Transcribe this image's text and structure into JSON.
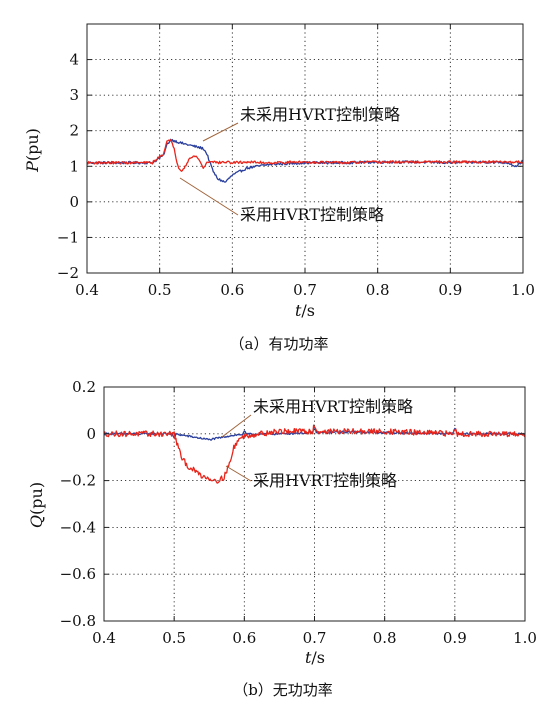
{
  "chart_data": [
    {
      "type": "line",
      "caption": "（a）有功功率",
      "xlabel": "t/s",
      "ylabel": "P(pu)",
      "xlim": [
        0.4,
        1.0
      ],
      "ylim": [
        -2,
        5
      ],
      "xticks": [
        0.4,
        0.5,
        0.6,
        0.7,
        0.8,
        0.9,
        1.0
      ],
      "xtick_labels": [
        "0.4",
        "0.5",
        "0.6",
        "0.7",
        "0.8",
        "0.9",
        "1.0"
      ],
      "yticks": [
        -2,
        -1,
        0,
        1,
        2,
        3,
        4
      ],
      "ytick_labels": [
        "−2",
        "−1",
        "0",
        "1",
        "2",
        "3",
        "4"
      ],
      "grid": "dotted",
      "annotations": [
        "未采用HVRT控制策略",
        "采用HVRT控制策略"
      ],
      "series": [
        {
          "name": "未采用HVRT控制策略",
          "color": "#2a3f9d",
          "noise": 0.035,
          "x": [
            0.4,
            0.49,
            0.505,
            0.51,
            0.515,
            0.52,
            0.53,
            0.54,
            0.55,
            0.56,
            0.565,
            0.57,
            0.575,
            0.58,
            0.59,
            0.6,
            0.62,
            0.65,
            0.7,
            0.75,
            0.8,
            0.85,
            0.9,
            0.95,
            0.98,
            0.99,
            1.0
          ],
          "y": [
            1.1,
            1.1,
            1.3,
            1.6,
            1.75,
            1.72,
            1.65,
            1.6,
            1.55,
            1.5,
            1.35,
            1.05,
            0.8,
            0.65,
            0.55,
            0.75,
            0.95,
            1.05,
            1.1,
            1.1,
            1.12,
            1.12,
            1.1,
            1.12,
            1.1,
            1.0,
            1.15
          ]
        },
        {
          "name": "采用HVRT控制策略",
          "color": "#e8251b",
          "noise": 0.035,
          "x": [
            0.4,
            0.49,
            0.505,
            0.51,
            0.515,
            0.52,
            0.525,
            0.53,
            0.535,
            0.54,
            0.55,
            0.555,
            0.56,
            0.565,
            0.57,
            0.58,
            0.59,
            0.6,
            0.62,
            0.65,
            0.7,
            0.75,
            0.8,
            0.85,
            0.9,
            0.95,
            1.0
          ],
          "y": [
            1.1,
            1.1,
            1.35,
            1.7,
            1.72,
            1.5,
            1.0,
            0.88,
            1.0,
            1.2,
            1.3,
            1.15,
            0.95,
            1.1,
            1.15,
            1.1,
            1.12,
            1.1,
            1.12,
            1.1,
            1.12,
            1.1,
            1.12,
            1.12,
            1.12,
            1.12,
            1.12
          ]
        }
      ]
    },
    {
      "type": "line",
      "caption": "（b）无功功率",
      "xlabel": "t/s",
      "ylabel": "Q(pu)",
      "xlim": [
        0.4,
        1.0
      ],
      "ylim": [
        -0.8,
        0.2
      ],
      "xticks": [
        0.4,
        0.5,
        0.6,
        0.7,
        0.8,
        0.9,
        1.0
      ],
      "xtick_labels": [
        "0.4",
        "0.5",
        "0.6",
        "0.7",
        "0.8",
        "0.9",
        "1.0"
      ],
      "yticks": [
        -0.8,
        -0.6,
        -0.4,
        -0.2,
        0,
        0.2
      ],
      "ytick_labels": [
        "−0.8",
        "−0.6",
        "−0.4",
        "−0.2",
        "0",
        "0.2"
      ],
      "grid": "dotted",
      "annotations": [
        "未采用HVRT控制策略",
        "采用HVRT控制策略"
      ],
      "series": [
        {
          "name": "未采用HVRT控制策略",
          "color": "#2a3f9d",
          "noise": 0.004,
          "x": [
            0.4,
            0.5,
            0.52,
            0.54,
            0.55,
            0.56,
            0.58,
            0.6,
            0.65,
            0.7,
            0.75,
            0.8,
            0.85,
            0.9,
            0.95,
            1.0
          ],
          "y": [
            0.0,
            0.0,
            -0.01,
            -0.02,
            -0.025,
            -0.02,
            -0.008,
            -0.002,
            0.0,
            0.005,
            0.008,
            0.005,
            0.002,
            0.0,
            0.0,
            0.0
          ],
          "spikes": [
            [
              0.5,
              -0.015
            ],
            [
              0.6,
              0.01
            ],
            [
              0.7,
              0.02
            ],
            [
              0.9,
              0.02
            ]
          ]
        },
        {
          "name": "采用HVRT控制策略",
          "color": "#e8251b",
          "noise": 0.012,
          "x": [
            0.4,
            0.5,
            0.505,
            0.51,
            0.52,
            0.53,
            0.54,
            0.55,
            0.56,
            0.57,
            0.58,
            0.585,
            0.59,
            0.6,
            0.62,
            0.65,
            0.7,
            0.75,
            0.8,
            0.85,
            0.9,
            0.95,
            1.0
          ],
          "y": [
            0.0,
            0.0,
            -0.05,
            -0.1,
            -0.14,
            -0.16,
            -0.18,
            -0.19,
            -0.2,
            -0.19,
            -0.12,
            -0.06,
            -0.03,
            -0.01,
            0.0,
            0.01,
            0.01,
            0.01,
            0.01,
            0.005,
            0.0,
            0.0,
            -0.005
          ],
          "spikes": [
            [
              0.7,
              0.02
            ],
            [
              0.9,
              0.02
            ]
          ]
        }
      ]
    }
  ]
}
